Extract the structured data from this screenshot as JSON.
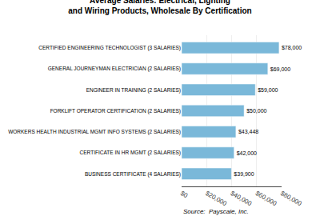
{
  "chart_data": {
    "type": "bar",
    "orientation": "horizontal",
    "title": "Average Salaries: Electrical, Lighting\nand Wiring Products, Wholesale By Certification",
    "categories": [
      "BUSINESS CERTIFICATE (4 SALARIES)",
      "CERTIFICATE IN HR MGMT (2 SALARIES)",
      "WORKERS HEALTH INDUSTRIAL MGMT INFO SYSTEMS (2 SALARIES)",
      "FORKLIFT OPERATOR CERTIFICATION (2 SALARIES)",
      "ENGINEER IN TRAINING (2 SALARIES)",
      "GENERAL JOURNEYMAN ELECTRICIAN (2 SALARIES)",
      "CERTIFIED ENGINEERING TECHNOLOGIST (3 SALARIES)"
    ],
    "values": [
      39900,
      42000,
      43448,
      50000,
      59000,
      69000,
      78000
    ],
    "value_labels": [
      "$39,900",
      "$42,000",
      "$43,448",
      "$50,000",
      "$59,000",
      "$69,000",
      "$78,000"
    ],
    "data_labels": true,
    "color": "#7ab8d9",
    "xlim": [
      0,
      80000
    ],
    "xticks": [
      {
        "value": 0,
        "label": "$0"
      },
      {
        "value": 20000,
        "label": "$20,000"
      },
      {
        "value": 40000,
        "label": "$40,000"
      },
      {
        "value": 60000,
        "label": "$60,000"
      },
      {
        "value": 80000,
        "label": "$80,000"
      }
    ],
    "grid": true,
    "annotations": [
      "Source:  Payscale, Inc."
    ]
  }
}
